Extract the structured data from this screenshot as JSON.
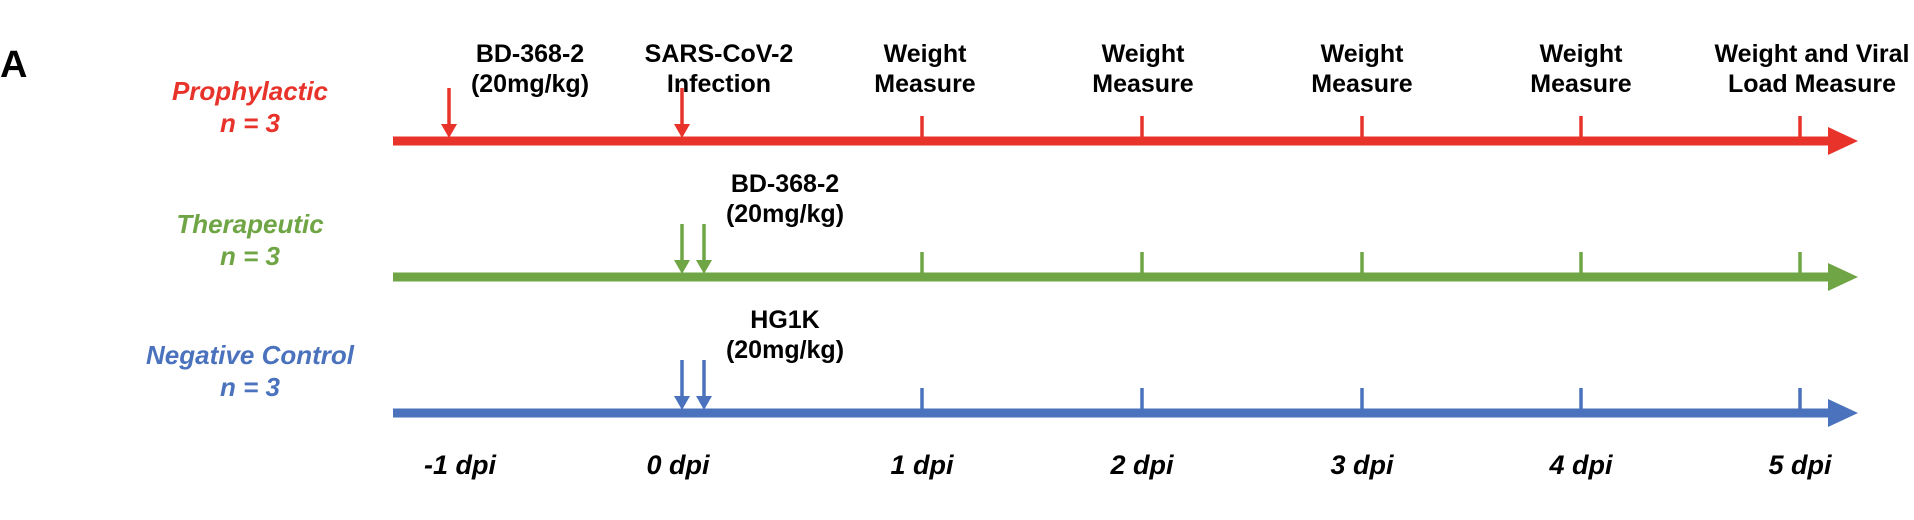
{
  "panel_label": "A",
  "colors": {
    "prophylactic": "#e8332b",
    "therapeutic": "#6fa545",
    "negative_control": "#4a72bd",
    "text": "#000000"
  },
  "groups": [
    {
      "name": "Prophylactic",
      "n": "n = 3",
      "color": "#e8332b",
      "dose_day": -1,
      "dose_note": [
        "BD-368-2",
        "(20mg/kg)"
      ],
      "infection_note": [
        "SARS-CoV-2",
        "Infection"
      ],
      "double_arrow": false
    },
    {
      "name": "Therapeutic",
      "n": "n = 3",
      "color": "#6fa545",
      "dose_day": 0,
      "dose_note": [
        "BD-368-2",
        "(20mg/kg)"
      ],
      "double_arrow": true
    },
    {
      "name": "Negative Control",
      "n": "n = 3",
      "color": "#4a72bd",
      "dose_day": 0,
      "dose_note": [
        "HG1K",
        "(20mg/kg)"
      ],
      "double_arrow": true
    }
  ],
  "measures": [
    {
      "day": 1,
      "lines": [
        "Weight",
        "Measure"
      ]
    },
    {
      "day": 2,
      "lines": [
        "Weight",
        "Measure"
      ]
    },
    {
      "day": 3,
      "lines": [
        "Weight",
        "Measure"
      ]
    },
    {
      "day": 4,
      "lines": [
        "Weight",
        "Measure"
      ]
    },
    {
      "day": 5,
      "lines": [
        "Weight and Viral",
        "Load Measure"
      ]
    }
  ],
  "timeline": {
    "days": [
      -1,
      0,
      1,
      2,
      3,
      4,
      5
    ],
    "tick_labels": [
      "-1 dpi",
      "0 dpi",
      "1 dpi",
      "2 dpi",
      "3 dpi",
      "4 dpi",
      "5 dpi"
    ]
  }
}
